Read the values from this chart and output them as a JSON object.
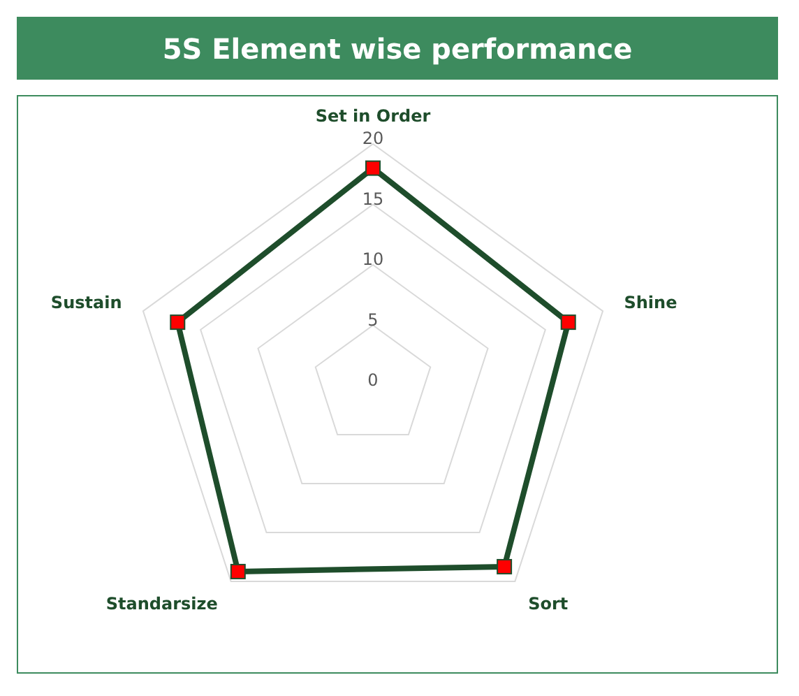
{
  "chart_data": {
    "type": "radar",
    "title": "5S Element wise performance",
    "categories": [
      "Set in Order",
      "Shine",
      "Sort",
      "Standarsize",
      "Sustain"
    ],
    "series": [
      {
        "color": "#1e4d2b",
        "values": [
          18,
          17,
          18.5,
          19,
          17
        ]
      }
    ],
    "ylim": [
      0,
      20
    ],
    "yticks": [
      0,
      5,
      10,
      15,
      20
    ],
    "grid": true,
    "marker": "square"
  }
}
